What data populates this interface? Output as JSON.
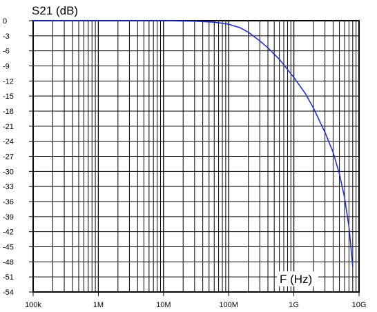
{
  "chart_data": {
    "type": "line",
    "ylabel": "S21 (dB)",
    "xlabel": "F (Hz)",
    "x_scale": "log",
    "xlim": [
      100000,
      10000000000
    ],
    "ylim": [
      -54,
      0
    ],
    "grid": true,
    "x_ticks": [
      {
        "value": 100000,
        "label": "100k"
      },
      {
        "value": 1000000,
        "label": "1M"
      },
      {
        "value": 10000000,
        "label": "10M"
      },
      {
        "value": 100000000,
        "label": "100M"
      },
      {
        "value": 1000000000,
        "label": "1G"
      },
      {
        "value": 10000000000,
        "label": "10G"
      }
    ],
    "y_ticks": [
      0,
      -3,
      -6,
      -9,
      -12,
      -15,
      -18,
      -21,
      -24,
      -27,
      -30,
      -33,
      -36,
      -39,
      -42,
      -45,
      -48,
      -51,
      -54
    ],
    "series": [
      {
        "color": "#2233cc",
        "x": [
          100000,
          1000000,
          10000000,
          30000000,
          60000000,
          100000000,
          150000000,
          200000000,
          300000000,
          400000000,
          600000000,
          1000000000,
          1500000000,
          2000000000,
          3000000000,
          4000000000,
          5000000000,
          6000000000,
          7000000000,
          7500000000,
          8000000000
        ],
        "y": [
          0,
          0,
          0,
          -0.1,
          -0.3,
          -0.7,
          -1.4,
          -2.3,
          -4.0,
          -5.4,
          -7.7,
          -11.3,
          -14.5,
          -17.4,
          -22.2,
          -26.2,
          -30.5,
          -35.3,
          -41.0,
          -45.0,
          -49.0
        ]
      }
    ]
  }
}
